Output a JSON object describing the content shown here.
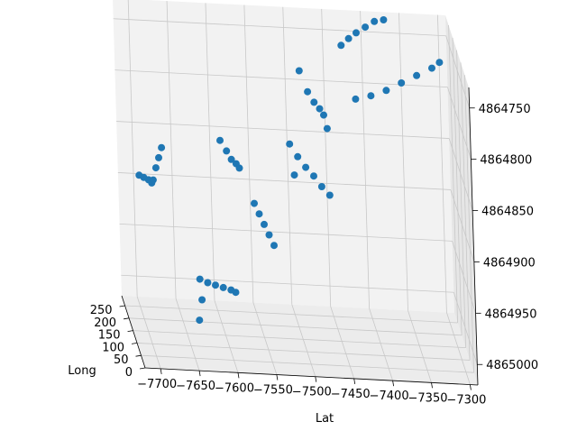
{
  "chart_data": {
    "type": "scatter",
    "projection": "3d",
    "title": "",
    "xlabel": "Lat",
    "ylabel": "Long",
    "zlabel": "",
    "xlim": [
      -7720,
      -7290
    ],
    "ylim": [
      0,
      290
    ],
    "zlim": [
      4865020,
      4864730
    ],
    "x_ticks": [
      -7700,
      -7650,
      -7600,
      -7550,
      -7500,
      -7450,
      -7400,
      -7350,
      -7300
    ],
    "x_tick_labels": [
      "−7700",
      "−7650",
      "−7600",
      "−7550",
      "−7500",
      "−7450",
      "−7400",
      "−7350",
      "−7300"
    ],
    "y_ticks": [
      0,
      50,
      100,
      150,
      200,
      250
    ],
    "y_tick_labels": [
      "0",
      "50",
      "100",
      "150",
      "200",
      "250"
    ],
    "z_ticks": [
      4864750,
      4864800,
      4864850,
      4864900,
      4864950,
      4865000
    ],
    "z_tick_labels": [
      "4864750",
      "4864800",
      "4864850",
      "4864900",
      "4864950",
      "4865000"
    ],
    "grid": true,
    "legend": "none",
    "marker_color": "#1f77b4",
    "clusters": [
      {
        "x": [
          -7706,
          -7700,
          -7694,
          -7690,
          -7688,
          -7684,
          -7680,
          -7676
        ],
        "y": [
          150,
          150,
          150,
          150,
          150,
          150,
          150,
          150
        ],
        "z": [
          4864868,
          4864870,
          4864872,
          4864875,
          4864872,
          4864860,
          4864850,
          4864840
        ]
      },
      {
        "x": [
          -7640,
          -7630,
          -7620,
          -7610,
          -7600,
          -7594,
          -7638,
          -7642
        ],
        "y": [
          60,
          60,
          60,
          60,
          60,
          60,
          60,
          60
        ],
        "z": [
          4864945,
          4864948,
          4864950,
          4864952,
          4864954,
          4864956,
          4864965,
          4864985
        ]
      },
      {
        "x": [
          -7600,
          -7592,
          -7586,
          -7580,
          -7576
        ],
        "y": [
          150,
          150,
          150,
          150,
          150
        ],
        "z": [
          4864830,
          4864840,
          4864848,
          4864852,
          4864856
        ]
      },
      {
        "x": [
          -7560,
          -7554,
          -7548,
          -7542,
          -7536
        ],
        "y": [
          130,
          130,
          130,
          130,
          130
        ],
        "z": [
          4864885,
          4864895,
          4864905,
          4864915,
          4864925
        ]
      },
      {
        "x": [
          -7510,
          -7500,
          -7490,
          -7480,
          -7470,
          -7460,
          -7505
        ],
        "y": [
          150,
          150,
          150,
          150,
          150,
          150,
          150
        ],
        "z": [
          4864830,
          4864842,
          4864852,
          4864860,
          4864870,
          4864878,
          4864860
        ]
      },
      {
        "x": [
          -7490,
          -7480,
          -7472,
          -7465,
          -7460,
          -7456
        ],
        "y": [
          200,
          200,
          200,
          200,
          200,
          200
        ],
        "z": [
          4864770,
          4864790,
          4864800,
          4864806,
          4864812,
          4864825
        ]
      },
      {
        "x": [
          -7430,
          -7420,
          -7410,
          -7398,
          -7386,
          -7374
        ],
        "y": [
          250,
          250,
          250,
          250,
          250,
          250
        ],
        "z": [
          4864755,
          4864748,
          4864742,
          4864736,
          4864730,
          4864728
        ]
      },
      {
        "x": [
          -7420,
          -7400,
          -7380,
          -7360,
          -7340,
          -7320,
          -7310
        ],
        "y": [
          180,
          180,
          180,
          180,
          180,
          180,
          180
        ],
        "z": [
          4864790,
          4864786,
          4864780,
          4864772,
          4864764,
          4864756,
          4864750
        ]
      }
    ]
  }
}
